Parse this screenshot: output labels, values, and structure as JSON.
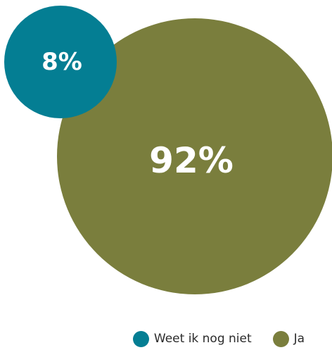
{
  "chart_data": {
    "type": "bubble",
    "title": "",
    "series": [
      {
        "name": "Weet ik nog niet",
        "value": 8,
        "label": "8%",
        "color": "#047e93"
      },
      {
        "name": "Ja",
        "value": 92,
        "label": "92%",
        "color": "#7a7e3d"
      }
    ],
    "legend": "bottom"
  }
}
